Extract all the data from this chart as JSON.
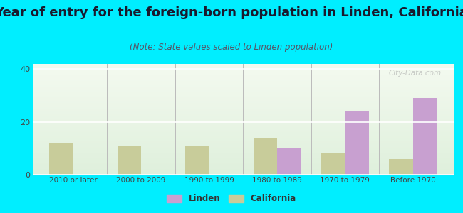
{
  "title": "Year of entry for the foreign-born population in Linden, California",
  "subtitle": "(Note: State values scaled to Linden population)",
  "categories": [
    "2010 or later",
    "2000 to 2009",
    "1990 to 1999",
    "1980 to 1989",
    "1970 to 1979",
    "Before 1970"
  ],
  "linden_values": [
    0,
    0,
    0,
    10,
    24,
    29
  ],
  "california_values": [
    12,
    11,
    11,
    14,
    8,
    6
  ],
  "linden_color": "#c8a0d0",
  "california_color": "#c8cc9a",
  "background_color": "#00eeff",
  "plot_bg_top": "#f4faf0",
  "plot_bg_bottom": "#dff0dc",
  "title_fontsize": 13,
  "subtitle_fontsize": 8.5,
  "ylim": [
    0,
    42
  ],
  "yticks": [
    0,
    20,
    40
  ],
  "bar_width": 0.35,
  "legend_labels": [
    "Linden",
    "California"
  ],
  "watermark": "City-Data.com"
}
